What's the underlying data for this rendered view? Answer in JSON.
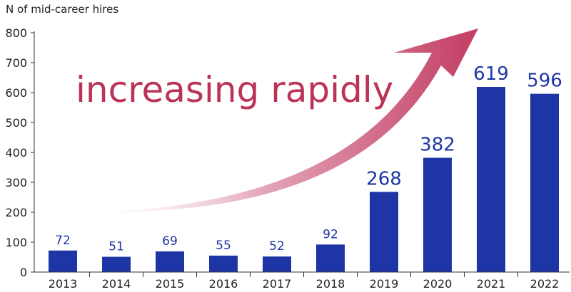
{
  "chart_data": {
    "type": "bar",
    "title": "",
    "ylabel": "N of mid-career hires",
    "xlabel": "",
    "categories": [
      "2013",
      "2014",
      "2015",
      "2016",
      "2017",
      "2018",
      "2019",
      "2020",
      "2021",
      "2022"
    ],
    "values": [
      72,
      51,
      69,
      55,
      52,
      92,
      268,
      382,
      619,
      596
    ],
    "ylim": [
      0,
      800
    ],
    "yticks": [
      0,
      100,
      200,
      300,
      400,
      500,
      600,
      700,
      800
    ],
    "grid": false,
    "bar_color": "#1e35a6",
    "annotation": "increasing rapidly",
    "annotation_color": "#bb3355",
    "arrow_color": "#c23d63"
  }
}
